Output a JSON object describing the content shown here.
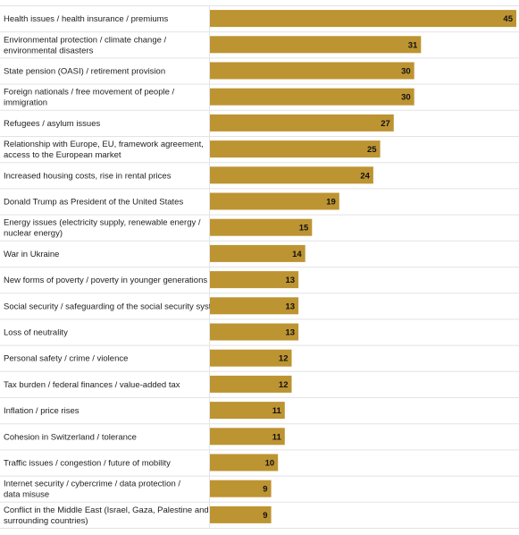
{
  "chart_data": {
    "type": "bar",
    "orientation": "horizontal",
    "bar_color": "#bd9432",
    "separator_color": "#e3e3e3",
    "xlim": [
      0,
      45
    ],
    "grid": false,
    "categories": [
      [
        "Health issues / health insurance / premiums"
      ],
      [
        "Environmental protection / climate change /",
        "environmental disasters"
      ],
      [
        "State pension (OASI) / retirement provision"
      ],
      [
        "Foreign nationals / free movement of people /",
        "immigration"
      ],
      [
        "Refugees / asylum issues"
      ],
      [
        "Relationship with Europe, EU, framework agreement,",
        "access to the European market"
      ],
      [
        "Increased housing costs, rise in rental prices"
      ],
      [
        "Donald Trump as President of the United States"
      ],
      [
        "Energy issues (electricity supply, renewable energy /",
        "nuclear energy)"
      ],
      [
        "War in Ukraine"
      ],
      [
        "New forms of poverty / poverty in younger generations"
      ],
      [
        "Social security / safeguarding of the social security system"
      ],
      [
        "Loss of neutrality"
      ],
      [
        "Personal safety / crime / violence"
      ],
      [
        "Tax burden / federal finances / value-added tax"
      ],
      [
        "Inflation / price rises"
      ],
      [
        "Cohesion in Switzerland / tolerance"
      ],
      [
        "Traffic issues / congestion / future of mobility"
      ],
      [
        "Internet security / cybercrime / data protection /",
        "data misuse"
      ],
      [
        "Conflict in the Middle East (Israel, Gaza, Palestine and",
        "surrounding countries)"
      ]
    ],
    "values": [
      45,
      31,
      30,
      30,
      27,
      25,
      24,
      19,
      15,
      14,
      13,
      13,
      13,
      12,
      12,
      11,
      11,
      10,
      9,
      9
    ]
  }
}
